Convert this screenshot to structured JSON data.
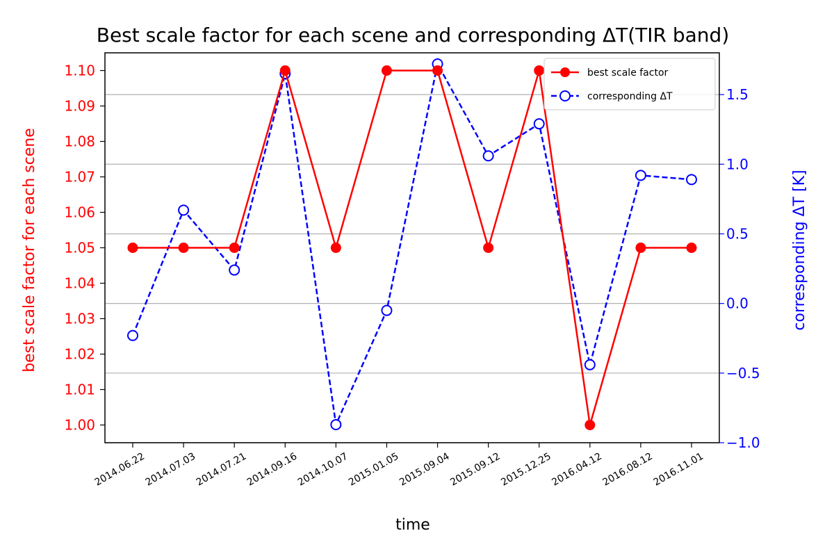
{
  "chart_data": {
    "type": "line",
    "title": "Best scale factor for each scene and corresponding ΔT(TIR band)",
    "xlabel": "time",
    "ylabel_left": "best scale factor for each scene",
    "ylabel_right": "corresponding ΔT [K]",
    "categories": [
      "2014.06.22",
      "2014.07.03",
      "2014.07.21",
      "2014.09.16",
      "2014.10.07",
      "2015.01.05",
      "2015.09.04",
      "2015.09.12",
      "2015.12.25",
      "2016.04.12",
      "2016.08.12",
      "2016.11.01"
    ],
    "ylim_left": [
      0.995,
      1.105
    ],
    "ylim_right": [
      -1.0,
      1.8
    ],
    "yticks_left": [
      "1.00",
      "1.01",
      "1.02",
      "1.03",
      "1.04",
      "1.05",
      "1.06",
      "1.07",
      "1.08",
      "1.09",
      "1.10"
    ],
    "yticks_right": [
      "−1.0",
      "−0.5",
      "0.0",
      "0.5",
      "1.0",
      "1.5"
    ],
    "grid": "horizontal (right axis)",
    "legend_position": "top-right",
    "series": [
      {
        "name": "best scale factor",
        "axis": "left",
        "color": "#ff0000",
        "style": "solid, filled circle markers",
        "values": [
          1.05,
          1.05,
          1.05,
          1.1,
          1.05,
          1.1,
          1.1,
          1.05,
          1.1,
          1.0,
          1.05,
          1.05
        ]
      },
      {
        "name": "corresponding ΔT",
        "axis": "right",
        "color": "#0000ff",
        "style": "dashed, open circle markers",
        "values": [
          -0.23,
          0.67,
          0.24,
          1.65,
          -0.87,
          -0.05,
          1.72,
          1.06,
          1.29,
          -0.44,
          0.92,
          0.89
        ]
      }
    ]
  }
}
